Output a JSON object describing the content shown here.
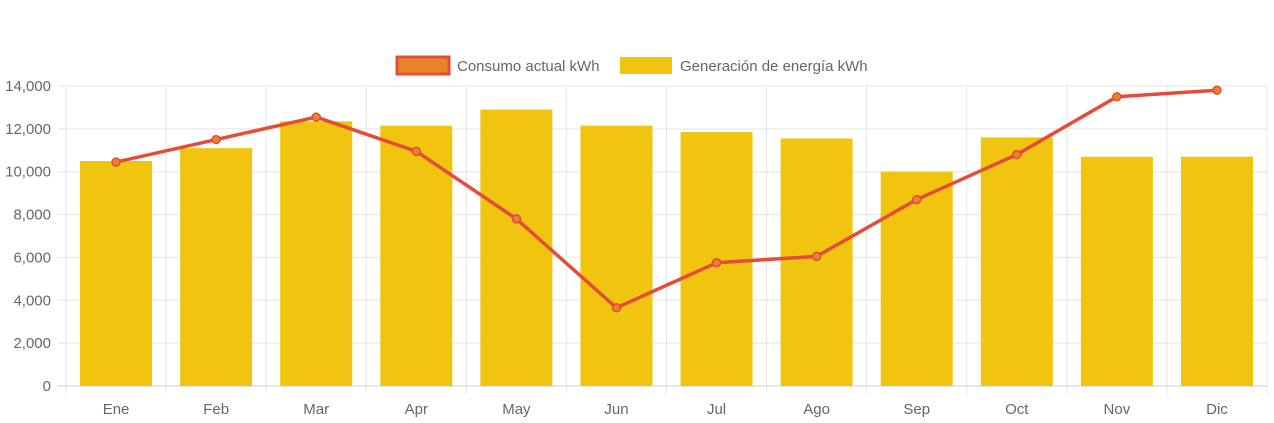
{
  "chart_data": {
    "type": "bar",
    "categories": [
      "Ene",
      "Feb",
      "Mar",
      "Apr",
      "May",
      "Jun",
      "Jul",
      "Ago",
      "Sep",
      "Oct",
      "Nov",
      "Dic"
    ],
    "series": [
      {
        "name": "Consumo actual kWh",
        "type": "line",
        "color": "#e44c3a",
        "point_color": "#e8832a",
        "values": [
          10450,
          11500,
          12550,
          10950,
          7800,
          3650,
          5750,
          6050,
          8700,
          10800,
          13500,
          13800
        ]
      },
      {
        "name": "Generación de energía kWh",
        "type": "bar",
        "color": "#f0c40f",
        "values": [
          10500,
          11100,
          12350,
          12150,
          12900,
          12150,
          11850,
          11550,
          10000,
          11600,
          10700,
          10700
        ]
      }
    ],
    "ylim": [
      0,
      14000
    ],
    "y_ticks": [
      0,
      2000,
      4000,
      6000,
      8000,
      10000,
      12000,
      14000
    ],
    "y_tick_labels": [
      "0",
      "2,000",
      "4,000",
      "6,000",
      "8,000",
      "10,000",
      "12,000",
      "14,000"
    ],
    "grid": true,
    "legend_position": "top"
  }
}
